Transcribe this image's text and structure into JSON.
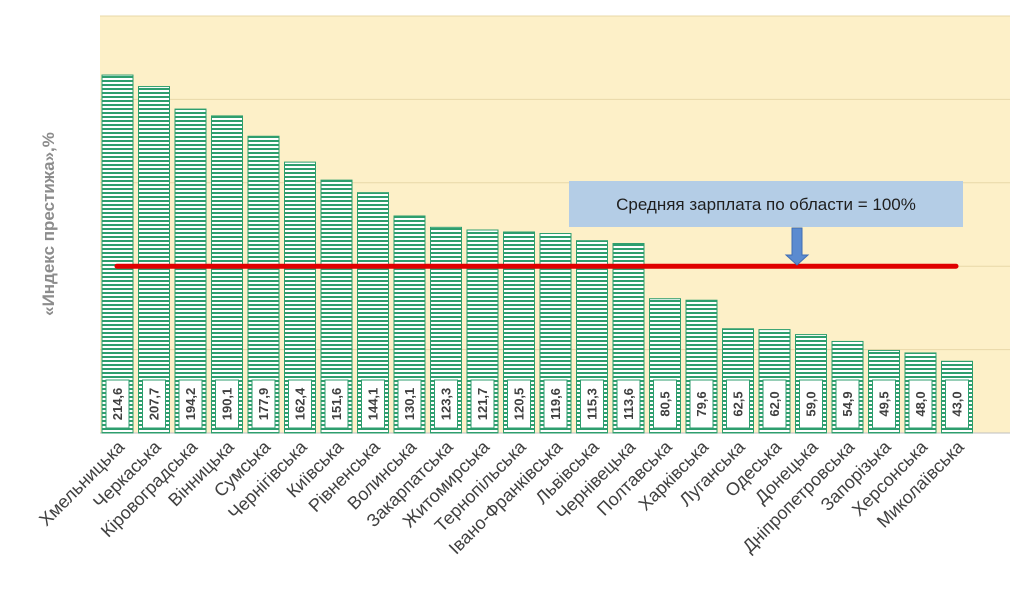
{
  "chart_data": {
    "type": "bar",
    "title": "",
    "xlabel": "",
    "ylabel": "«Индекс престижа»,%",
    "categories": [
      "Хмельницька",
      "Черкаська",
      "Кіровоградська",
      "Вінницька",
      "Сумська",
      "Чернігівська",
      "Київська",
      "Рівненська",
      "Волинська",
      "Закарпатська",
      "Житомирська",
      "Тернопільська",
      "Івано-Франківська",
      "Львівська",
      "Чернівецька",
      "Полтавська",
      "Харківська",
      "Луганська",
      "Одеська",
      "Донецька",
      "Дніпропетровська",
      "Запорізька",
      "Херсонська",
      "Миколаївська"
    ],
    "values": [
      214.6,
      207.7,
      194.2,
      190.1,
      177.9,
      162.4,
      151.6,
      144.1,
      130.1,
      123.3,
      121.7,
      120.5,
      119.6,
      115.3,
      113.6,
      80.5,
      79.6,
      62.5,
      62.0,
      59.0,
      54.9,
      49.5,
      48.0,
      43.0
    ],
    "value_labels": [
      "214,6",
      "207,7",
      "194,2",
      "190,1",
      "177,9",
      "162,4",
      "151,6",
      "144,1",
      "130,1",
      "123,3",
      "121,7",
      "120,5",
      "119,6",
      "115,3",
      "113,6",
      "80,5",
      "79,6",
      "62,5",
      "62,0",
      "59,0",
      "54,9",
      "49,5",
      "48,0",
      "43,0"
    ],
    "ylim": [
      0,
      250
    ],
    "grid": true,
    "reference_line": {
      "value": 100,
      "label": "Средняя зарплата по области = 100%",
      "color": "#e00000"
    },
    "colors": {
      "plot_background": "#fdf0c8",
      "bar_stripe": "#2e9e6e",
      "bar_background": "#ffffff",
      "annotation_box": "#b4cde6",
      "arrow": "#5b8bd0"
    }
  }
}
